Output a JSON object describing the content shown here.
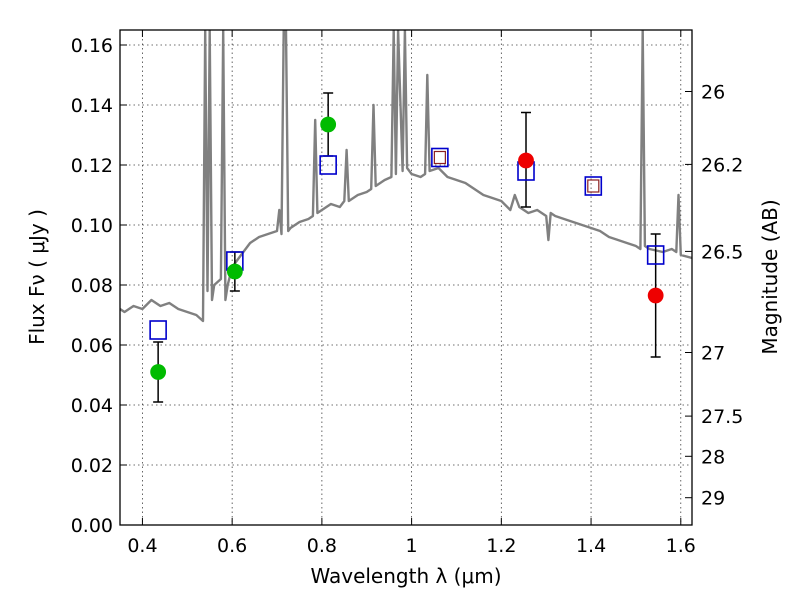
{
  "chart_data": {
    "type": "scatter",
    "xlabel": "Wavelength  λ (μm)",
    "ylabel": "Flux  Fν  ( μJy )",
    "ylabel_right": "Magnitude (AB)",
    "xlim": [
      0.35,
      1.625
    ],
    "ylim": [
      0.0,
      0.165
    ],
    "grid": true,
    "x_ticks": [
      0.4,
      0.6,
      0.8,
      1.0,
      1.2,
      1.4,
      1.6
    ],
    "x_tick_labels": [
      "0.4",
      "0.6",
      "0.8",
      "1",
      "1.2",
      "1.4",
      "1.6"
    ],
    "y_ticks": [
      0.0,
      0.02,
      0.04,
      0.06,
      0.08,
      0.1,
      0.12,
      0.14,
      0.16
    ],
    "y_tick_labels": [
      "0.00",
      "0.02",
      "0.04",
      "0.06",
      "0.08",
      "0.10",
      "0.12",
      "0.14",
      "0.16"
    ],
    "right_ticks": [
      {
        "label": "26",
        "flux": 0.1445
      },
      {
        "label": "26.2",
        "flux": 0.1202
      },
      {
        "label": "26.5",
        "flux": 0.0912
      },
      {
        "label": "27",
        "flux": 0.0575
      },
      {
        "label": "27.5",
        "flux": 0.0363
      },
      {
        "label": "28",
        "flux": 0.0229
      },
      {
        "label": "29",
        "flux": 0.0091
      }
    ],
    "model_sed": {
      "color": "#808080",
      "x": [
        0.35,
        0.36,
        0.38,
        0.4,
        0.42,
        0.44,
        0.46,
        0.48,
        0.5,
        0.52,
        0.535,
        0.54,
        0.545,
        0.55,
        0.555,
        0.56,
        0.575,
        0.58,
        0.585,
        0.59,
        0.6,
        0.62,
        0.64,
        0.66,
        0.68,
        0.7,
        0.705,
        0.71,
        0.715,
        0.72,
        0.725,
        0.73,
        0.75,
        0.77,
        0.78,
        0.785,
        0.79,
        0.8,
        0.82,
        0.84,
        0.85,
        0.855,
        0.86,
        0.88,
        0.9,
        0.91,
        0.915,
        0.92,
        0.94,
        0.955,
        0.96,
        0.965,
        0.97,
        0.98,
        0.985,
        0.99,
        1.0,
        1.02,
        1.03,
        1.035,
        1.04,
        1.06,
        1.08,
        1.1,
        1.12,
        1.14,
        1.16,
        1.18,
        1.2,
        1.22,
        1.23,
        1.24,
        1.26,
        1.28,
        1.3,
        1.305,
        1.31,
        1.32,
        1.34,
        1.36,
        1.38,
        1.4,
        1.42,
        1.44,
        1.46,
        1.48,
        1.5,
        1.51,
        1.515,
        1.52,
        1.53,
        1.56,
        1.58,
        1.59,
        1.595,
        1.6,
        1.625
      ],
      "y": [
        0.072,
        0.071,
        0.073,
        0.072,
        0.075,
        0.073,
        0.074,
        0.072,
        0.071,
        0.07,
        0.068,
        0.165,
        0.078,
        0.165,
        0.075,
        0.08,
        0.082,
        0.165,
        0.075,
        0.08,
        0.086,
        0.09,
        0.094,
        0.096,
        0.097,
        0.098,
        0.105,
        0.097,
        0.165,
        0.165,
        0.098,
        0.099,
        0.101,
        0.102,
        0.103,
        0.135,
        0.104,
        0.105,
        0.107,
        0.106,
        0.108,
        0.125,
        0.108,
        0.11,
        0.111,
        0.112,
        0.14,
        0.113,
        0.115,
        0.116,
        0.165,
        0.117,
        0.165,
        0.118,
        0.165,
        0.119,
        0.117,
        0.116,
        0.117,
        0.15,
        0.118,
        0.119,
        0.116,
        0.115,
        0.114,
        0.112,
        0.11,
        0.109,
        0.108,
        0.105,
        0.11,
        0.106,
        0.104,
        0.105,
        0.103,
        0.095,
        0.104,
        0.103,
        0.102,
        0.101,
        0.1,
        0.099,
        0.098,
        0.096,
        0.095,
        0.094,
        0.093,
        0.092,
        0.165,
        0.093,
        0.092,
        0.091,
        0.092,
        0.091,
        0.11,
        0.09,
        0.089
      ]
    },
    "model_bands": {
      "color": "#0000cc",
      "x": [
        0.435,
        0.606,
        0.814,
        1.063,
        1.255,
        1.405,
        1.544
      ],
      "y": [
        0.065,
        0.088,
        0.12,
        0.1225,
        0.118,
        0.113,
        0.09
      ]
    },
    "hst_filters": {
      "color": "#8b2020",
      "x": [
        1.063,
        1.405
      ],
      "y": [
        0.1225,
        0.113
      ]
    },
    "observed_green": {
      "color": "#00bb00",
      "x": [
        0.435,
        0.606,
        0.814
      ],
      "y": [
        0.051,
        0.0845,
        0.1335
      ],
      "err_low": [
        0.041,
        0.078,
        0.123
      ],
      "err_high": [
        0.061,
        0.091,
        0.144
      ]
    },
    "observed_red": {
      "color": "#ee0000",
      "x": [
        1.255,
        1.544
      ],
      "y": [
        0.1215,
        0.0765
      ],
      "err_low": [
        0.106,
        0.056
      ],
      "err_high": [
        0.1375,
        0.097
      ]
    }
  }
}
